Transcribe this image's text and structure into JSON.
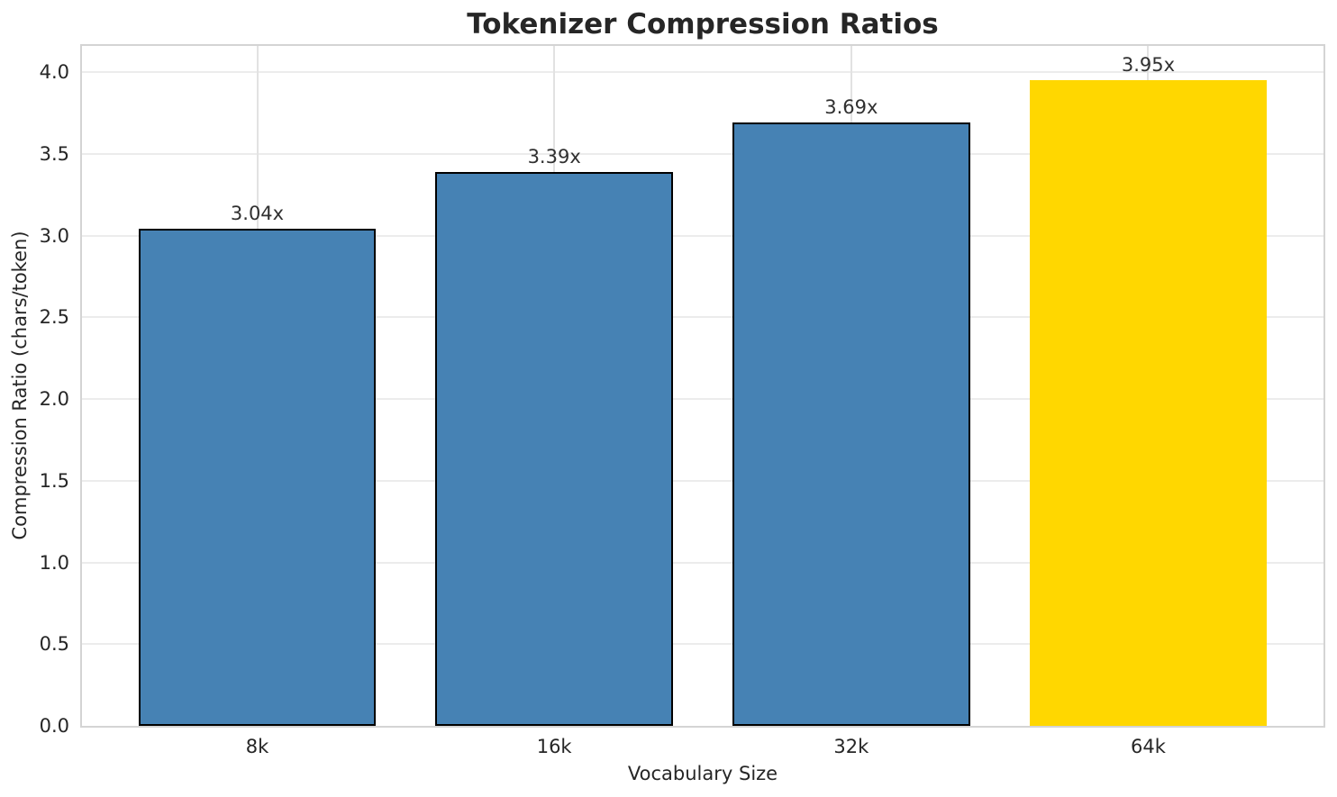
{
  "chart_data": {
    "type": "bar",
    "title": "Tokenizer Compression Ratios",
    "xlabel": "Vocabulary Size",
    "ylabel": "Compression Ratio (chars/token)",
    "categories": [
      "8k",
      "16k",
      "32k",
      "64k"
    ],
    "values": [
      3.04,
      3.39,
      3.69,
      3.95
    ],
    "bar_labels": [
      "3.04x",
      "3.39x",
      "3.69x",
      "3.95x"
    ],
    "bar_colors": [
      "#4682B4",
      "#4682B4",
      "#4682B4",
      "#FFD700"
    ],
    "bar_edge_colors": [
      "#000000",
      "#000000",
      "#000000",
      null
    ],
    "ytick_values": [
      0.0,
      0.5,
      1.0,
      1.5,
      2.0,
      2.5,
      3.0,
      3.5,
      4.0
    ],
    "ytick_labels": [
      "0.0",
      "0.5",
      "1.0",
      "1.5",
      "2.0",
      "2.5",
      "3.0",
      "3.5",
      "4.0"
    ],
    "ylim": [
      0,
      4.16
    ],
    "xlim": [
      -0.59,
      3.59
    ],
    "bar_width": 0.8,
    "grid": "both",
    "legend": "none",
    "colors": {
      "accent_bar": "#4682B4",
      "highlight_bar": "#FFD700",
      "bar_edge": "#000000",
      "grid": "#ececec",
      "spine": "#d4d4d4",
      "text": "#262626"
    }
  }
}
